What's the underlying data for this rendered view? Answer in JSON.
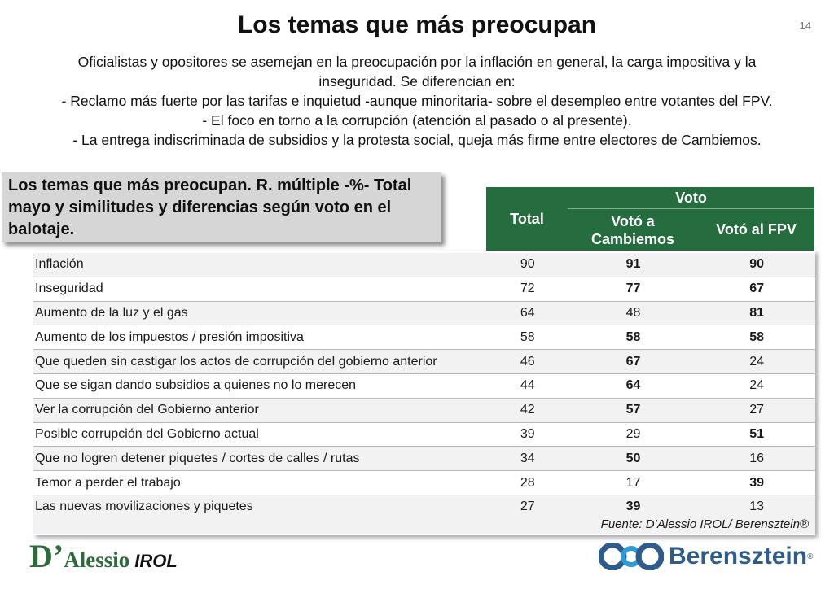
{
  "title": "Los temas que más preocupan",
  "page_number": "14",
  "intro_lines": [
    "Oficialistas y opositores se asemejan en la preocupación por la inflación en general, la carga impositiva y la",
    "inseguridad. Se diferencian en:",
    "- Reclamo más fuerte por las tarifas e inquietud -aunque minoritaria- sobre el desempleo entre votantes del FPV.",
    "- El foco en torno a la corrupción (atención al pasado o al presente).",
    "- La entrega indiscriminada de subsidios y la protesta social, queja más firme entre electores de Cambiemos."
  ],
  "callout": "Los temas que más preocupan. R. múltiple -%- Total mayo y similitudes y diferencias según voto en el balotaje.",
  "table": {
    "header_total": "Total",
    "header_voto": "Voto",
    "header_cambiemos": "Votó a Cambiemos",
    "header_fpv": "Votó al FPV",
    "rows": [
      {
        "label": "Inflación",
        "total": "90",
        "cambiemos": "91",
        "fpv": "90",
        "bold_cam": true,
        "bold_fpv": true
      },
      {
        "label": "Inseguridad",
        "total": "72",
        "cambiemos": "77",
        "fpv": "67",
        "bold_cam": true,
        "bold_fpv": true
      },
      {
        "label": "Aumento de la luz y el gas",
        "total": "64",
        "cambiemos": "48",
        "fpv": "81",
        "bold_cam": false,
        "bold_fpv": true
      },
      {
        "label": "Aumento de los impuestos / presión impositiva",
        "total": "58",
        "cambiemos": "58",
        "fpv": "58",
        "bold_cam": true,
        "bold_fpv": true
      },
      {
        "label": "Que queden sin castigar los actos de corrupción del gobierno anterior",
        "total": "46",
        "cambiemos": "67",
        "fpv": "24",
        "bold_cam": true,
        "bold_fpv": false
      },
      {
        "label": "Que se sigan dando subsidios a quienes no lo merecen",
        "total": "44",
        "cambiemos": "64",
        "fpv": "24",
        "bold_cam": true,
        "bold_fpv": false
      },
      {
        "label": "Ver la corrupción del Gobierno anterior",
        "total": "42",
        "cambiemos": "57",
        "fpv": "27",
        "bold_cam": true,
        "bold_fpv": false
      },
      {
        "label": "Posible corrupción del Gobierno actual",
        "total": "39",
        "cambiemos": "29",
        "fpv": "51",
        "bold_cam": false,
        "bold_fpv": true
      },
      {
        "label": "Que no logren detener piquetes / cortes de calles / rutas",
        "total": "34",
        "cambiemos": "50",
        "fpv": "16",
        "bold_cam": true,
        "bold_fpv": false
      },
      {
        "label": "Temor a perder el trabajo",
        "total": "28",
        "cambiemos": "17",
        "fpv": "39",
        "bold_cam": false,
        "bold_fpv": true
      },
      {
        "label": "Las nuevas movilizaciones y piquetes",
        "total": "27",
        "cambiemos": "39",
        "fpv": "13",
        "bold_cam": true,
        "bold_fpv": false
      }
    ],
    "source": "Fuente: D’Alessio IROL/ Berensztein®"
  },
  "logos": {
    "left_d": "D’",
    "left_name": "Alessio",
    "left_suffix": "IROL",
    "right_name": "Berensztein",
    "right_reg": "®"
  },
  "colors": {
    "header_green": "#256c3e",
    "logo_green": "#2e6b3b",
    "logo_blue": "#2f5c8a"
  }
}
